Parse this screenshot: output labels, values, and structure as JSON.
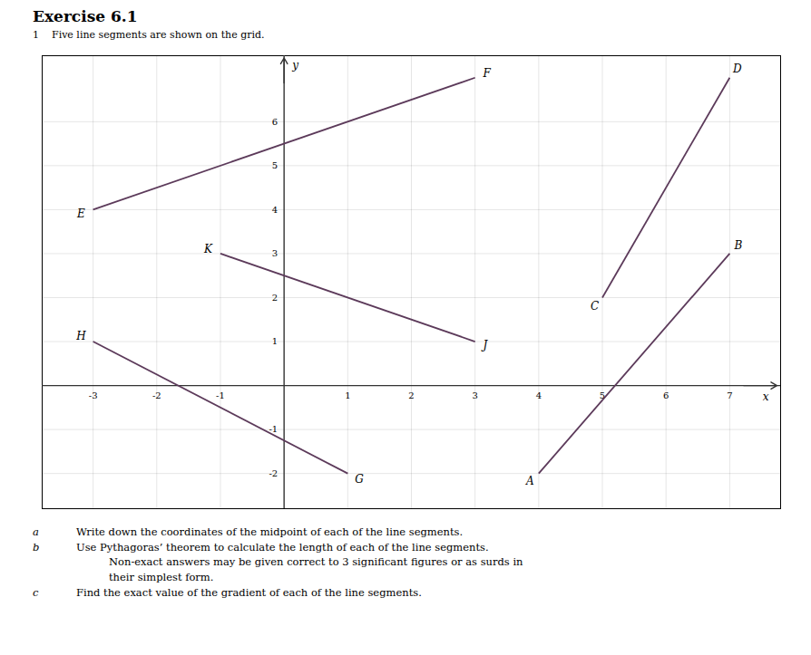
{
  "chart_data": {
    "type": "line",
    "title": "Exercise 6.1",
    "subtitle": [
      "1",
      "Five line segments are shown on the grid."
    ],
    "x_label": "x",
    "y_label": "y",
    "xlim": [
      -3.8,
      7.8
    ],
    "ylim": [
      -2.8,
      7.5
    ],
    "xticks": [
      -3,
      -2,
      -1,
      1,
      2,
      3,
      4,
      5,
      6,
      7
    ],
    "yticks": [
      -2,
      -1,
      1,
      2,
      3,
      4,
      5,
      6
    ],
    "grid": true,
    "color": "#5c3a5a",
    "segments": [
      {
        "x": [
          -3,
          3
        ],
        "y": [
          4,
          7
        ],
        "labels": [
          "E",
          "F"
        ]
      },
      {
        "x": [
          -1,
          3
        ],
        "y": [
          3,
          1
        ],
        "labels": [
          "K",
          "J"
        ]
      },
      {
        "x": [
          -3,
          1
        ],
        "y": [
          1,
          -2
        ],
        "labels": [
          "H",
          "G"
        ]
      },
      {
        "x": [
          4,
          7
        ],
        "y": [
          -2,
          3
        ],
        "labels": [
          "A",
          "B"
        ]
      },
      {
        "x": [
          5,
          7
        ],
        "y": [
          2,
          7
        ],
        "labels": [
          "C",
          "D"
        ]
      }
    ],
    "annotations": [
      {
        "label": "a",
        "text": "Write down the coordinates of the midpoint of each of the line segments."
      },
      {
        "label": "b",
        "text": "Use Pythagoras’ theorem to calculate the length of each of the line segments."
      },
      {
        "text": "Non-exact answers may be given correct to 3 significant figures or as surds in"
      },
      {
        "text": "their simplest form."
      },
      {
        "label": "c",
        "text": "Find the exact value of the gradient of each of the line segments."
      }
    ]
  }
}
